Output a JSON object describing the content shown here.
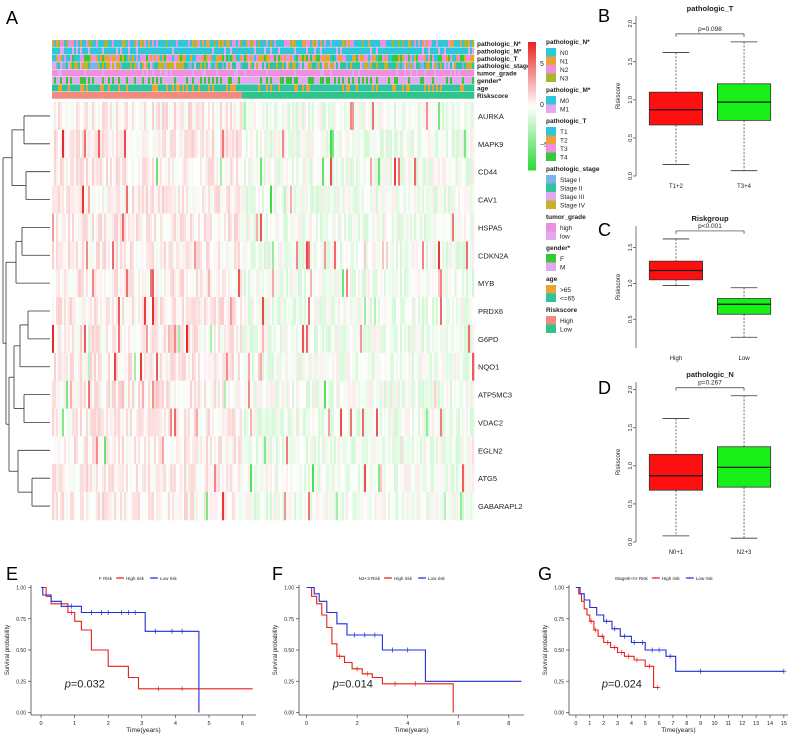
{
  "panel_letters": [
    "A",
    "B",
    "C",
    "D",
    "E",
    "F",
    "G"
  ],
  "colors": {
    "high_red": "#e8372f",
    "low_green": "#2ee62e",
    "cyan": "#2ec7d9",
    "orange": "#e8a33a",
    "olive": "#a8b62c",
    "pink": "#f08fe0",
    "violet": "#e4a8f0",
    "salmon": "#f28a7e",
    "teal": "#2ec48a",
    "km_red": "#e8201a",
    "km_blue": "#1f2fd6"
  },
  "heatmap": {
    "annotation_tracks": [
      "pathologic_N*",
      "pathologic_M*",
      "pathologic_T",
      "pathologic_stage",
      "tumor_grade",
      "gender*",
      "age",
      "Riskscore"
    ],
    "genes": [
      "AURKA",
      "MAPK9",
      "CD44",
      "CAV1",
      "HSPA5",
      "CDKN2A",
      "MYB",
      "PRDX6",
      "G6PD",
      "NQO1",
      "ATP5MC3",
      "VDAC2",
      "EGLN2",
      "ATG5",
      "GABARAPL2"
    ],
    "color_scale": {
      "ticks": [
        "5",
        "0",
        "−5"
      ],
      "range": [
        -7,
        7
      ]
    },
    "legend_groups": [
      {
        "title": "pathologic_N*",
        "items": [
          {
            "label": "N0",
            "color": "#2ec7d9"
          },
          {
            "label": "N1",
            "color": "#e8a33a"
          },
          {
            "label": "N2",
            "color": "#f08fe0"
          },
          {
            "label": "N3",
            "color": "#a8b62c"
          }
        ]
      },
      {
        "title": "pathologic_M*",
        "items": [
          {
            "label": "M0",
            "color": "#2ec7d9"
          },
          {
            "label": "M1",
            "color": "#e4a8f0"
          }
        ]
      },
      {
        "title": "pathologic_T",
        "items": [
          {
            "label": "T1",
            "color": "#2ec7d9"
          },
          {
            "label": "T2",
            "color": "#e8a33a"
          },
          {
            "label": "T3",
            "color": "#f08fe0"
          },
          {
            "label": "T4",
            "color": "#35c93a"
          }
        ]
      },
      {
        "title": "pathologic_stage",
        "items": [
          {
            "label": "Stage I",
            "color": "#7fb3e8"
          },
          {
            "label": "Stage II",
            "color": "#2ec4a0"
          },
          {
            "label": "Stage III",
            "color": "#e4a8f0"
          },
          {
            "label": "Stage IV",
            "color": "#c8b02a"
          }
        ]
      },
      {
        "title": "tumor_grade",
        "items": [
          {
            "label": "high",
            "color": "#f08fe0"
          },
          {
            "label": "low",
            "color": "#e4a8f0"
          }
        ]
      },
      {
        "title": "gender*",
        "items": [
          {
            "label": "F",
            "color": "#35c93a"
          },
          {
            "label": "M",
            "color": "#e4a8f0"
          }
        ]
      },
      {
        "title": "age",
        "items": [
          {
            "label": ">65",
            "color": "#e8a33a"
          },
          {
            "label": "<=65",
            "color": "#2ec4a0"
          }
        ]
      },
      {
        "title": "Riskscore",
        "items": [
          {
            "label": "High",
            "color": "#f28a7e"
          },
          {
            "label": "Low",
            "color": "#2ec48a"
          }
        ]
      }
    ]
  },
  "chart_data": [
    {
      "panel": "B",
      "type": "box",
      "title": "pathologic_T",
      "ylabel": "Riskscore",
      "ylim": [
        0,
        2.1
      ],
      "yticks": [
        0.0,
        0.5,
        1.0,
        1.5,
        2.0
      ],
      "categories": [
        "T1+2",
        "T3+4"
      ],
      "boxes": [
        {
          "min": 0.15,
          "q1": 0.67,
          "median": 0.87,
          "q3": 1.1,
          "max": 1.62,
          "color": "#ff1010"
        },
        {
          "min": 0.07,
          "q1": 0.73,
          "median": 0.97,
          "q3": 1.21,
          "max": 1.76,
          "color": "#18ee18"
        }
      ],
      "pvalue": "p=0.098"
    },
    {
      "panel": "C",
      "type": "box",
      "title": "Riskgroup",
      "ylabel": "Riskscore",
      "ylim": [
        0.1,
        1.8
      ],
      "yticks": [
        0.5,
        1.0,
        1.5
      ],
      "categories": [
        "High",
        "Low"
      ],
      "boxes": [
        {
          "min": 0.97,
          "q1": 1.05,
          "median": 1.18,
          "q3": 1.31,
          "max": 1.62,
          "color": "#ff1010"
        },
        {
          "min": 0.25,
          "q1": 0.57,
          "median": 0.71,
          "q3": 0.79,
          "max": 0.94,
          "color": "#18ee18"
        }
      ],
      "pvalue": "p<0.001"
    },
    {
      "panel": "D",
      "type": "box",
      "title": "pathologic_N",
      "ylabel": "Riskscore",
      "ylim": [
        0,
        2.1
      ],
      "yticks": [
        0.0,
        0.5,
        1.0,
        1.5,
        2.0
      ],
      "categories": [
        "N0+1",
        "N2+3"
      ],
      "boxes": [
        {
          "min": 0.08,
          "q1": 0.68,
          "median": 0.87,
          "q3": 1.15,
          "max": 1.62,
          "color": "#ff1010"
        },
        {
          "min": 0.05,
          "q1": 0.72,
          "median": 0.98,
          "q3": 1.25,
          "max": 1.92,
          "color": "#18ee18"
        }
      ],
      "pvalue": "p=0.267"
    },
    {
      "panel": "E",
      "type": "line",
      "subtype": "kaplan-meier",
      "legend_title": "F Risk",
      "xlabel": "Time(years)",
      "ylabel": "Survival probability",
      "xlim": [
        -0.3,
        6.4
      ],
      "xticks": [
        0,
        1,
        2,
        3,
        4,
        5,
        6
      ],
      "ylim": [
        -0.02,
        1.02
      ],
      "yticks": [
        "0.00",
        "0.25",
        "0.50",
        "0.75",
        "1.00"
      ],
      "pvalue": "p=0.032",
      "series": [
        {
          "name": "High risk",
          "color": "#e8201a",
          "x": [
            0,
            0.15,
            0.15,
            0.3,
            0.3,
            0.8,
            0.8,
            1.0,
            1.0,
            1.2,
            1.2,
            1.5,
            1.5,
            2.0,
            2.0,
            2.6,
            2.6,
            2.9,
            2.9,
            6.3
          ],
          "y": [
            1.0,
            1.0,
            0.93,
            0.93,
            0.87,
            0.87,
            0.8,
            0.8,
            0.73,
            0.73,
            0.66,
            0.66,
            0.5,
            0.5,
            0.37,
            0.37,
            0.28,
            0.28,
            0.19,
            0.19
          ],
          "censor_x": [
            0.9,
            3.5,
            4.2
          ]
        },
        {
          "name": "Low risk",
          "color": "#1f2fd6",
          "x": [
            0,
            0.05,
            0.05,
            0.3,
            0.3,
            0.6,
            0.6,
            1.2,
            1.2,
            3.1,
            3.1,
            4.7,
            4.7
          ],
          "y": [
            1.0,
            1.0,
            0.94,
            0.94,
            0.89,
            0.89,
            0.85,
            0.85,
            0.8,
            0.8,
            0.65,
            0.65,
            0.0
          ],
          "censor_x": [
            0.9,
            1.5,
            1.8,
            2.0,
            2.4,
            2.6,
            2.8,
            3.4,
            3.9,
            4.2
          ]
        }
      ]
    },
    {
      "panel": "F",
      "type": "line",
      "subtype": "kaplan-meier",
      "legend_title": "N2+3 Risk",
      "xlabel": "Time(years)",
      "ylabel": "Survival probability",
      "xlim": [
        -0.3,
        8.6
      ],
      "xticks": [
        0,
        2,
        4,
        6,
        8
      ],
      "ylim": [
        -0.02,
        1.02
      ],
      "yticks": [
        "0.00",
        "0.25",
        "0.50",
        "0.75",
        "1.00"
      ],
      "pvalue": "p=0.014",
      "series": [
        {
          "name": "High risk",
          "color": "#e8201a",
          "x": [
            0,
            0.2,
            0.2,
            0.4,
            0.4,
            0.6,
            0.6,
            0.8,
            0.8,
            1.0,
            1.0,
            1.2,
            1.2,
            1.5,
            1.5,
            1.8,
            1.8,
            2.2,
            2.2,
            2.6,
            2.6,
            3.0,
            3.0,
            5.8,
            5.8
          ],
          "y": [
            1.0,
            1.0,
            0.93,
            0.93,
            0.87,
            0.87,
            0.78,
            0.78,
            0.68,
            0.68,
            0.55,
            0.55,
            0.45,
            0.45,
            0.4,
            0.4,
            0.35,
            0.35,
            0.31,
            0.31,
            0.28,
            0.28,
            0.23,
            0.23,
            0.0
          ],
          "censor_x": [
            1.3,
            2.0,
            2.4,
            3.5,
            4.3
          ]
        },
        {
          "name": "Low risk",
          "color": "#1f2fd6",
          "x": [
            0,
            0.3,
            0.3,
            0.5,
            0.5,
            0.8,
            0.8,
            1.2,
            1.2,
            1.6,
            1.6,
            3.0,
            3.0,
            4.7,
            4.7,
            8.5
          ],
          "y": [
            1.0,
            1.0,
            0.95,
            0.95,
            0.89,
            0.89,
            0.8,
            0.8,
            0.71,
            0.71,
            0.62,
            0.62,
            0.5,
            0.5,
            0.25,
            0.25
          ],
          "censor_x": [
            1.9,
            2.3,
            2.7,
            3.4,
            4.0
          ]
        }
      ]
    },
    {
      "panel": "G",
      "type": "line",
      "subtype": "kaplan-meier",
      "legend_title": "StageIII+IV Risk",
      "xlabel": "Time(years)",
      "ylabel": "Survival probability",
      "xlim": [
        -0.5,
        15.3
      ],
      "xticks": [
        0,
        1,
        2,
        3,
        4,
        5,
        6,
        7,
        8,
        9,
        10,
        11,
        12,
        13,
        14,
        15
      ],
      "ylim": [
        -0.02,
        1.02
      ],
      "yticks": [
        "0.00",
        "0.25",
        "0.50",
        "0.75",
        "1.00"
      ],
      "pvalue": "p=0.024",
      "series": [
        {
          "name": "High risk",
          "color": "#e8201a",
          "x": [
            0,
            0.2,
            0.2,
            0.4,
            0.4,
            0.6,
            0.6,
            0.8,
            0.8,
            1.0,
            1.0,
            1.3,
            1.3,
            1.6,
            1.6,
            2.0,
            2.0,
            2.5,
            2.5,
            3.0,
            3.0,
            3.5,
            3.5,
            4.2,
            4.2,
            5.0,
            5.0,
            5.6,
            5.6,
            6.0
          ],
          "y": [
            1.0,
            1.0,
            0.95,
            0.95,
            0.89,
            0.89,
            0.83,
            0.83,
            0.78,
            0.78,
            0.73,
            0.73,
            0.66,
            0.66,
            0.61,
            0.61,
            0.56,
            0.56,
            0.52,
            0.52,
            0.48,
            0.48,
            0.45,
            0.45,
            0.42,
            0.42,
            0.37,
            0.37,
            0.2,
            0.2
          ],
          "censor_x": [
            1.1,
            1.4,
            1.9,
            2.3,
            2.8,
            3.3,
            3.8,
            4.4,
            5.3,
            5.9
          ]
        },
        {
          "name": "Low risk",
          "color": "#1f2fd6",
          "x": [
            0,
            0.3,
            0.3,
            0.6,
            0.6,
            1.0,
            1.0,
            1.5,
            1.5,
            2.0,
            2.0,
            2.6,
            2.6,
            3.2,
            3.2,
            4.0,
            4.0,
            5.0,
            5.0,
            6.5,
            6.5,
            7.2,
            7.2,
            15.0
          ],
          "y": [
            1.0,
            1.0,
            0.95,
            0.95,
            0.9,
            0.9,
            0.84,
            0.84,
            0.78,
            0.78,
            0.73,
            0.73,
            0.67,
            0.67,
            0.61,
            0.61,
            0.56,
            0.56,
            0.5,
            0.5,
            0.45,
            0.45,
            0.33,
            0.33
          ],
          "censor_x": [
            2.2,
            2.8,
            3.5,
            4.2,
            4.8,
            5.5,
            6.0,
            6.8,
            9.0,
            15.0
          ]
        }
      ]
    }
  ]
}
